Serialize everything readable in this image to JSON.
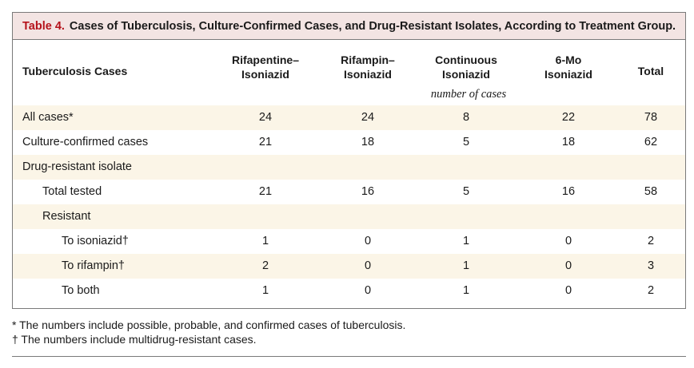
{
  "table": {
    "label": "Table 4.",
    "title": "Cases of Tuberculosis, Culture-Confirmed Cases, and Drug-Resistant Isolates, According to Treatment Group.",
    "first_header": "Tuberculosis Cases",
    "col_headers": [
      {
        "line1": "Rifapentine–",
        "line2": "Isoniazid"
      },
      {
        "line1": "Rifampin–",
        "line2": "Isoniazid"
      },
      {
        "line1": "Continuous",
        "line2": "Isoniazid"
      },
      {
        "line1": "6-Mo",
        "line2": "Isoniazid"
      },
      {
        "line1": "Total",
        "line2": ""
      }
    ],
    "unit_label": "number of cases",
    "rows": [
      {
        "label": "All cases*",
        "indent": 0,
        "values": [
          "24",
          "24",
          "8",
          "22",
          "78"
        ]
      },
      {
        "label": "Culture-confirmed cases",
        "indent": 0,
        "values": [
          "21",
          "18",
          "5",
          "18",
          "62"
        ]
      },
      {
        "label": "Drug-resistant isolate",
        "indent": 0,
        "values": [
          "",
          "",
          "",
          "",
          ""
        ]
      },
      {
        "label": "Total tested",
        "indent": 1,
        "values": [
          "21",
          "16",
          "5",
          "16",
          "58"
        ]
      },
      {
        "label": "Resistant",
        "indent": 1,
        "values": [
          "",
          "",
          "",
          "",
          ""
        ]
      },
      {
        "label": "To isoniazid†",
        "indent": 2,
        "values": [
          "1",
          "0",
          "1",
          "0",
          "2"
        ]
      },
      {
        "label": "To rifampin†",
        "indent": 2,
        "values": [
          "2",
          "0",
          "1",
          "0",
          "3"
        ]
      },
      {
        "label": "To both",
        "indent": 2,
        "values": [
          "1",
          "0",
          "1",
          "0",
          "2"
        ]
      }
    ]
  },
  "footnotes": [
    "* The numbers include possible, probable, and confirmed cases of tuberculosis.",
    "† The numbers include multidrug-resistant cases."
  ],
  "colors": {
    "title_label": "#b5121b",
    "title_bg": "#f3e4e3",
    "shaded_row": "#fbf5e7"
  }
}
